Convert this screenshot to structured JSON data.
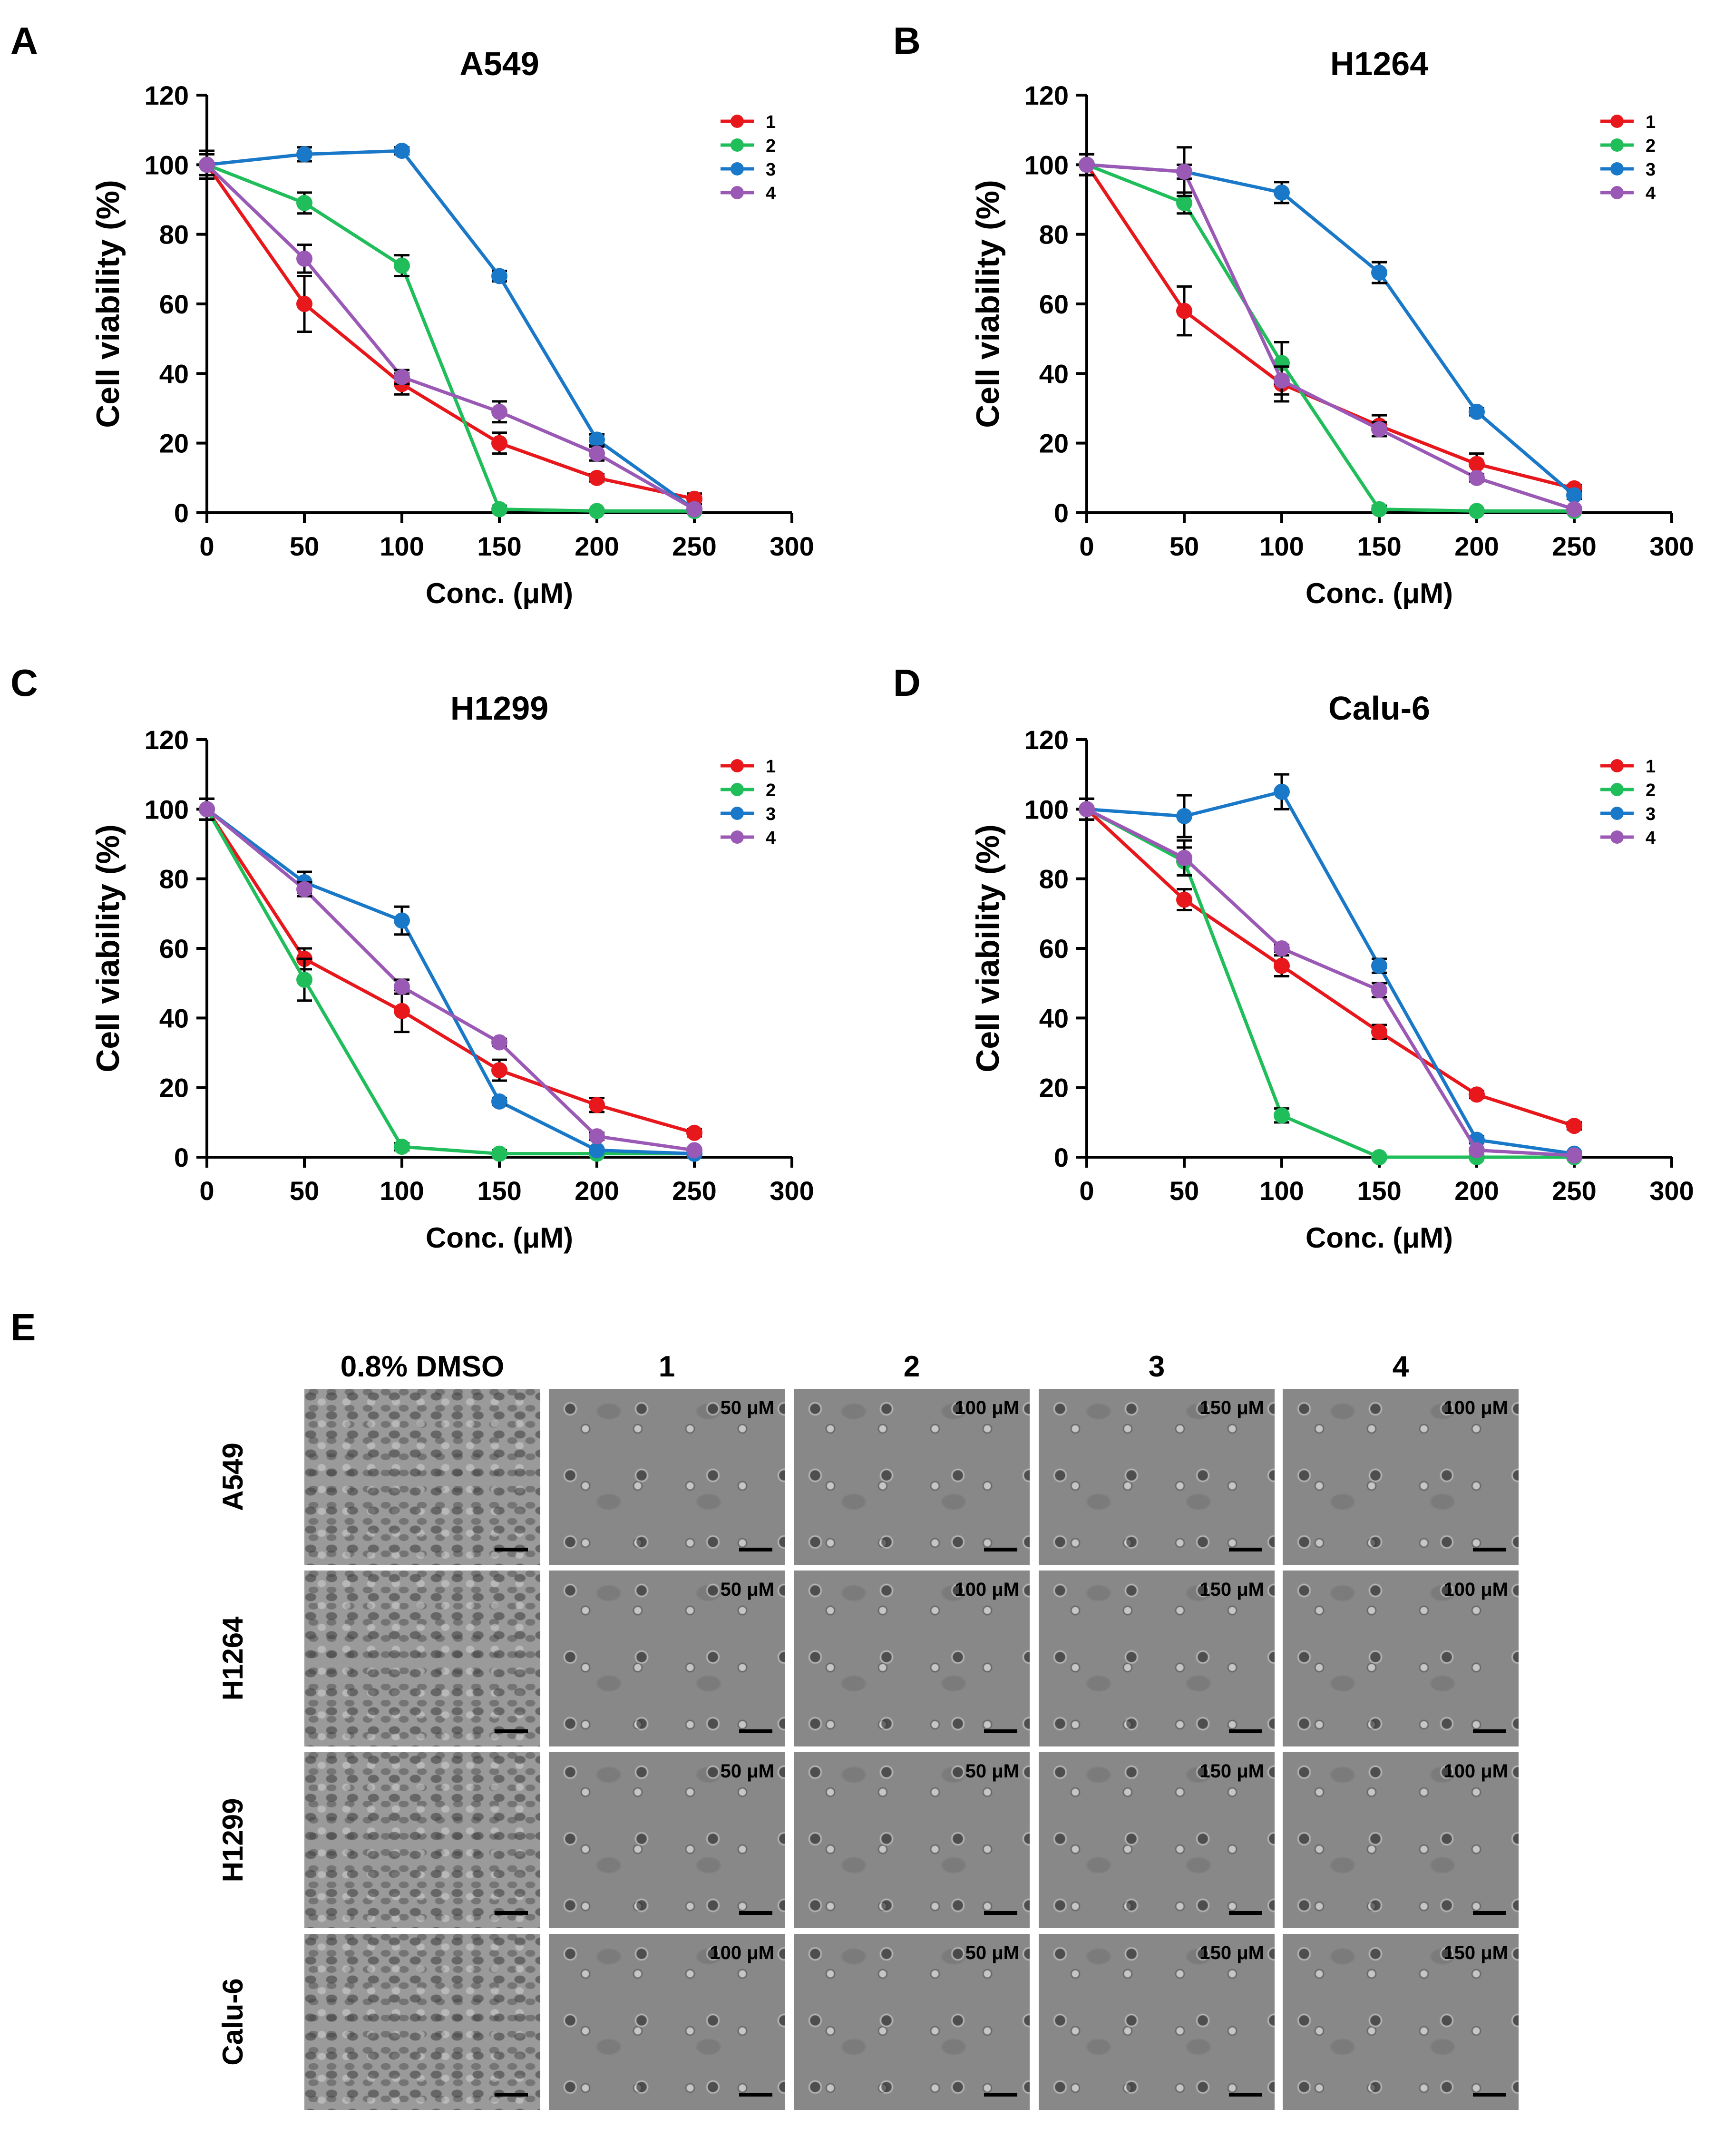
{
  "panels": [
    {
      "letter": "A"
    },
    {
      "letter": "B"
    },
    {
      "letter": "C"
    },
    {
      "letter": "D"
    },
    {
      "letter": "E"
    }
  ],
  "chart_data": [
    {
      "type": "line",
      "title": "A549",
      "xlabel": "Conc. (μM)",
      "ylabel": "Cell viability (%)",
      "xlim": [
        0,
        300
      ],
      "ylim": [
        0,
        120
      ],
      "xticks": [
        0,
        50,
        100,
        150,
        200,
        250,
        300
      ],
      "yticks": [
        0,
        20,
        40,
        60,
        80,
        100,
        120
      ],
      "x": [
        0,
        50,
        100,
        150,
        200,
        250
      ],
      "legend_position": "top-right",
      "series": [
        {
          "name": "1",
          "color": "#e8171c",
          "values": [
            100,
            60,
            37,
            20,
            10,
            4
          ],
          "errors": [
            4,
            8,
            3,
            3,
            1,
            1.5
          ]
        },
        {
          "name": "2",
          "color": "#1fbe5a",
          "values": [
            100,
            89,
            71,
            1,
            0.5,
            0.5
          ],
          "errors": [
            3,
            3,
            3,
            1,
            0.5,
            0.5
          ]
        },
        {
          "name": "3",
          "color": "#1a78c8",
          "values": [
            100,
            103,
            104,
            68,
            21,
            1
          ],
          "errors": [
            4,
            2,
            1,
            1.5,
            1.5,
            0.5
          ]
        },
        {
          "name": "4",
          "color": "#9b59b6",
          "values": [
            100,
            73,
            39,
            29,
            17,
            1
          ],
          "errors": [
            4,
            4,
            2,
            3,
            2,
            0.5
          ]
        }
      ]
    },
    {
      "type": "line",
      "title": "H1264",
      "xlabel": "Conc. (μM)",
      "ylabel": "Cell viability (%)",
      "xlim": [
        0,
        300
      ],
      "ylim": [
        0,
        120
      ],
      "xticks": [
        0,
        50,
        100,
        150,
        200,
        250,
        300
      ],
      "yticks": [
        0,
        20,
        40,
        60,
        80,
        100,
        120
      ],
      "x": [
        0,
        50,
        100,
        150,
        200,
        250
      ],
      "legend_position": "top-right",
      "series": [
        {
          "name": "1",
          "color": "#e8171c",
          "values": [
            100,
            58,
            37,
            25,
            14,
            7
          ],
          "errors": [
            3,
            7,
            5,
            3,
            3,
            1
          ]
        },
        {
          "name": "2",
          "color": "#1fbe5a",
          "values": [
            100,
            89,
            43,
            1,
            0.5,
            0.5
          ],
          "errors": [
            3,
            3,
            6,
            1,
            0.5,
            0.5
          ]
        },
        {
          "name": "3",
          "color": "#1a78c8",
          "values": [
            100,
            98,
            92,
            69,
            29,
            5
          ],
          "errors": [
            3,
            7,
            3,
            3,
            1,
            1
          ]
        },
        {
          "name": "4",
          "color": "#9b59b6",
          "values": [
            100,
            98,
            38,
            24,
            10,
            1
          ],
          "errors": [
            3,
            2,
            4,
            2,
            1,
            0.5
          ]
        }
      ]
    },
    {
      "type": "line",
      "title": "H1299",
      "xlabel": "Conc. (μM)",
      "ylabel": "Cell viability (%)",
      "xlim": [
        0,
        300
      ],
      "ylim": [
        0,
        120
      ],
      "xticks": [
        0,
        50,
        100,
        150,
        200,
        250,
        300
      ],
      "yticks": [
        0,
        20,
        40,
        60,
        80,
        100,
        120
      ],
      "x": [
        0,
        50,
        100,
        150,
        200,
        250
      ],
      "legend_position": "top-right",
      "series": [
        {
          "name": "1",
          "color": "#e8171c",
          "values": [
            100,
            57,
            42,
            25,
            15,
            7
          ],
          "errors": [
            3,
            3,
            6,
            3,
            2,
            1
          ]
        },
        {
          "name": "2",
          "color": "#1fbe5a",
          "values": [
            100,
            51,
            3,
            1,
            1,
            1
          ],
          "errors": [
            3,
            6,
            1,
            1,
            0.5,
            0.5
          ]
        },
        {
          "name": "3",
          "color": "#1a78c8",
          "values": [
            100,
            79,
            68,
            16,
            2,
            1
          ],
          "errors": [
            3,
            3,
            4,
            1,
            0.5,
            0.5
          ]
        },
        {
          "name": "4",
          "color": "#9b59b6",
          "values": [
            100,
            77,
            49,
            33,
            6,
            2
          ],
          "errors": [
            3,
            2,
            2,
            1,
            1,
            0.5
          ]
        }
      ]
    },
    {
      "type": "line",
      "title": "Calu-6",
      "xlabel": "Conc. (μM)",
      "ylabel": "Cell viability (%)",
      "xlim": [
        0,
        300
      ],
      "ylim": [
        0,
        120
      ],
      "xticks": [
        0,
        50,
        100,
        150,
        200,
        250,
        300
      ],
      "yticks": [
        0,
        20,
        40,
        60,
        80,
        100,
        120
      ],
      "x": [
        0,
        50,
        100,
        150,
        200,
        250
      ],
      "legend_position": "top-right",
      "series": [
        {
          "name": "1",
          "color": "#e8171c",
          "values": [
            100,
            74,
            55,
            36,
            18,
            9
          ],
          "errors": [
            3,
            3,
            3,
            2,
            1,
            1
          ]
        },
        {
          "name": "2",
          "color": "#1fbe5a",
          "values": [
            100,
            85,
            12,
            0,
            0,
            0
          ],
          "errors": [
            3,
            4,
            2,
            0.5,
            0.5,
            0.5
          ]
        },
        {
          "name": "3",
          "color": "#1a78c8",
          "values": [
            100,
            98,
            105,
            55,
            5,
            1
          ],
          "errors": [
            3,
            6,
            5,
            2,
            1,
            0.5
          ]
        },
        {
          "name": "4",
          "color": "#9b59b6",
          "values": [
            100,
            86,
            60,
            48,
            2,
            0.5
          ],
          "errors": [
            3,
            5,
            1,
            2,
            0.5,
            0.5
          ]
        }
      ]
    }
  ],
  "micrographs": {
    "columns": [
      "0.8% DMSO",
      "1",
      "2",
      "3",
      "4"
    ],
    "rows": [
      {
        "label": "A549",
        "concs": [
          "50 μM",
          "100 μM",
          "150 μM",
          "100 μM"
        ]
      },
      {
        "label": "H1264",
        "concs": [
          "50 μM",
          "100 μM",
          "150 μM",
          "100 μM"
        ]
      },
      {
        "label": "H1299",
        "concs": [
          "50 μM",
          "50 μM",
          "150 μM",
          "100 μM"
        ]
      },
      {
        "label": "Calu-6",
        "concs": [
          "100 μM",
          "50 μM",
          "150 μM",
          "150 μM"
        ]
      }
    ]
  }
}
